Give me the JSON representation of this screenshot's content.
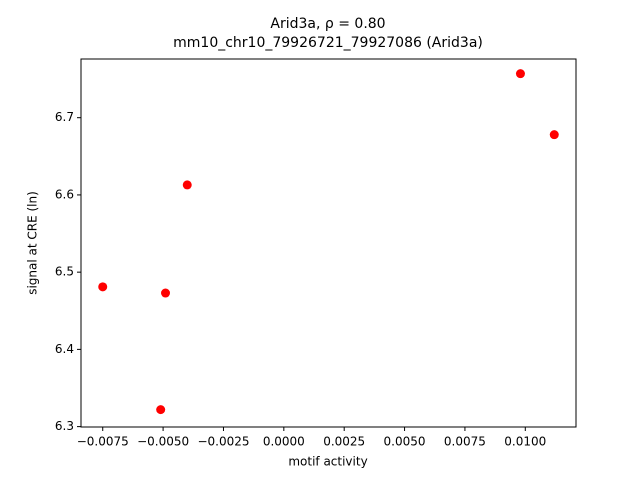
{
  "chart_data": {
    "type": "scatter",
    "title": "Arid3a, ρ = 0.80",
    "subtitle": "mm10_chr10_79926721_79927086 (Arid3a)",
    "x_label": "motif activity",
    "y_label": "signal at CRE (ln)",
    "x": [
      -0.0075,
      -0.0051,
      -0.0049,
      -0.004,
      0.0098,
      0.0112
    ],
    "values": [
      6.481,
      6.322,
      6.473,
      6.613,
      6.757,
      6.678
    ],
    "color": "#ff0000",
    "xlim": [
      -0.0084,
      0.0121
    ],
    "ylim": [
      6.2995,
      6.776
    ],
    "xticks": [
      {
        "value": -0.0075,
        "label": "−0.0075"
      },
      {
        "value": -0.005,
        "label": "−0.0050"
      },
      {
        "value": -0.0025,
        "label": "−0.0025"
      },
      {
        "value": 0,
        "label": "0.0000"
      },
      0.0025,
      {
        "value": 0.005,
        "label": "0.0050"
      },
      {
        "value": 0.0075,
        "label": "0.0075"
      },
      {
        "value": 0.01,
        "label": "0.0100"
      }
    ],
    "yticks": [
      6.3,
      6.4,
      6.5,
      6.6,
      6.7
    ],
    "grid": false
  }
}
